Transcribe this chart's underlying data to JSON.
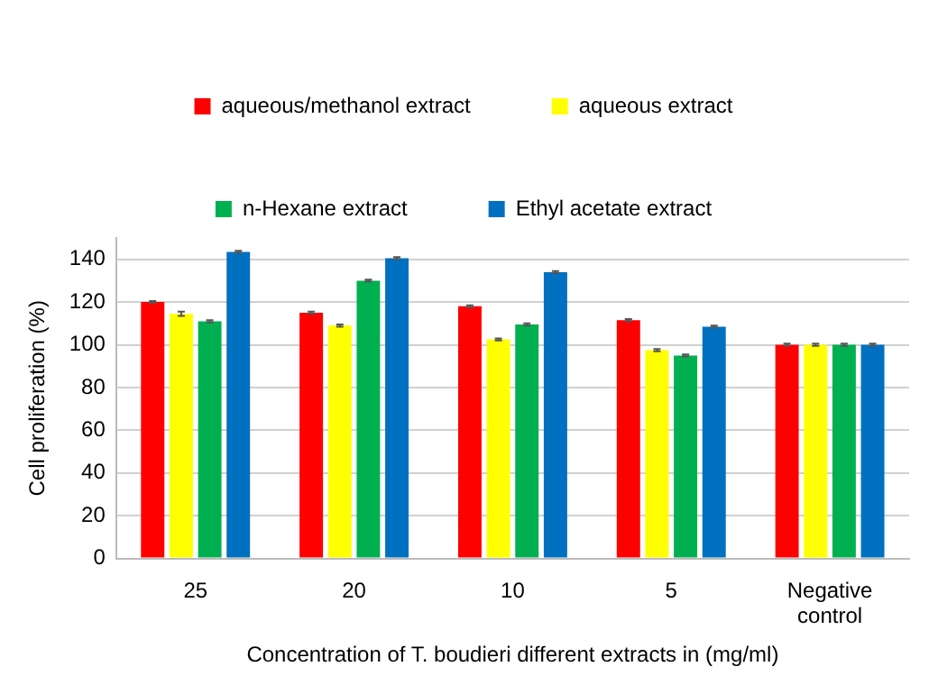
{
  "chart_data": {
    "type": "bar",
    "xlabel": "Concentration of T. boudieri different extracts in (mg/ml)",
    "ylabel": "Cell proliferation (%)",
    "categories": [
      "25",
      "20",
      "10",
      "5",
      "Negative control"
    ],
    "series": [
      {
        "name": "aqueous/methanol extract",
        "color": "#ff0000",
        "values": [
          120,
          115,
          118,
          111.5,
          100
        ],
        "errors": [
          0.5,
          0.5,
          0.5,
          0.5,
          0.5
        ]
      },
      {
        "name": "aqueous extract",
        "color": "#ffff00",
        "values": [
          114.5,
          109,
          102.5,
          97.5,
          100
        ],
        "errors": [
          1,
          0.5,
          0.5,
          0.5,
          0.5
        ]
      },
      {
        "name": "n-Hexane extract",
        "color": "#00b050",
        "values": [
          111,
          130,
          109.5,
          95,
          100
        ],
        "errors": [
          0.5,
          0.5,
          0.5,
          0.5,
          0.5
        ]
      },
      {
        "name": "Ethyl acetate extract",
        "color": "#0070c0",
        "values": [
          143.5,
          140.5,
          134,
          108.5,
          100
        ],
        "errors": [
          0.5,
          0.5,
          0.5,
          0.5,
          0.5
        ]
      }
    ],
    "ylim": [
      0,
      150
    ],
    "yticks": [
      0,
      20,
      40,
      60,
      80,
      100,
      120,
      140
    ],
    "grid": "y",
    "legend": "top"
  }
}
